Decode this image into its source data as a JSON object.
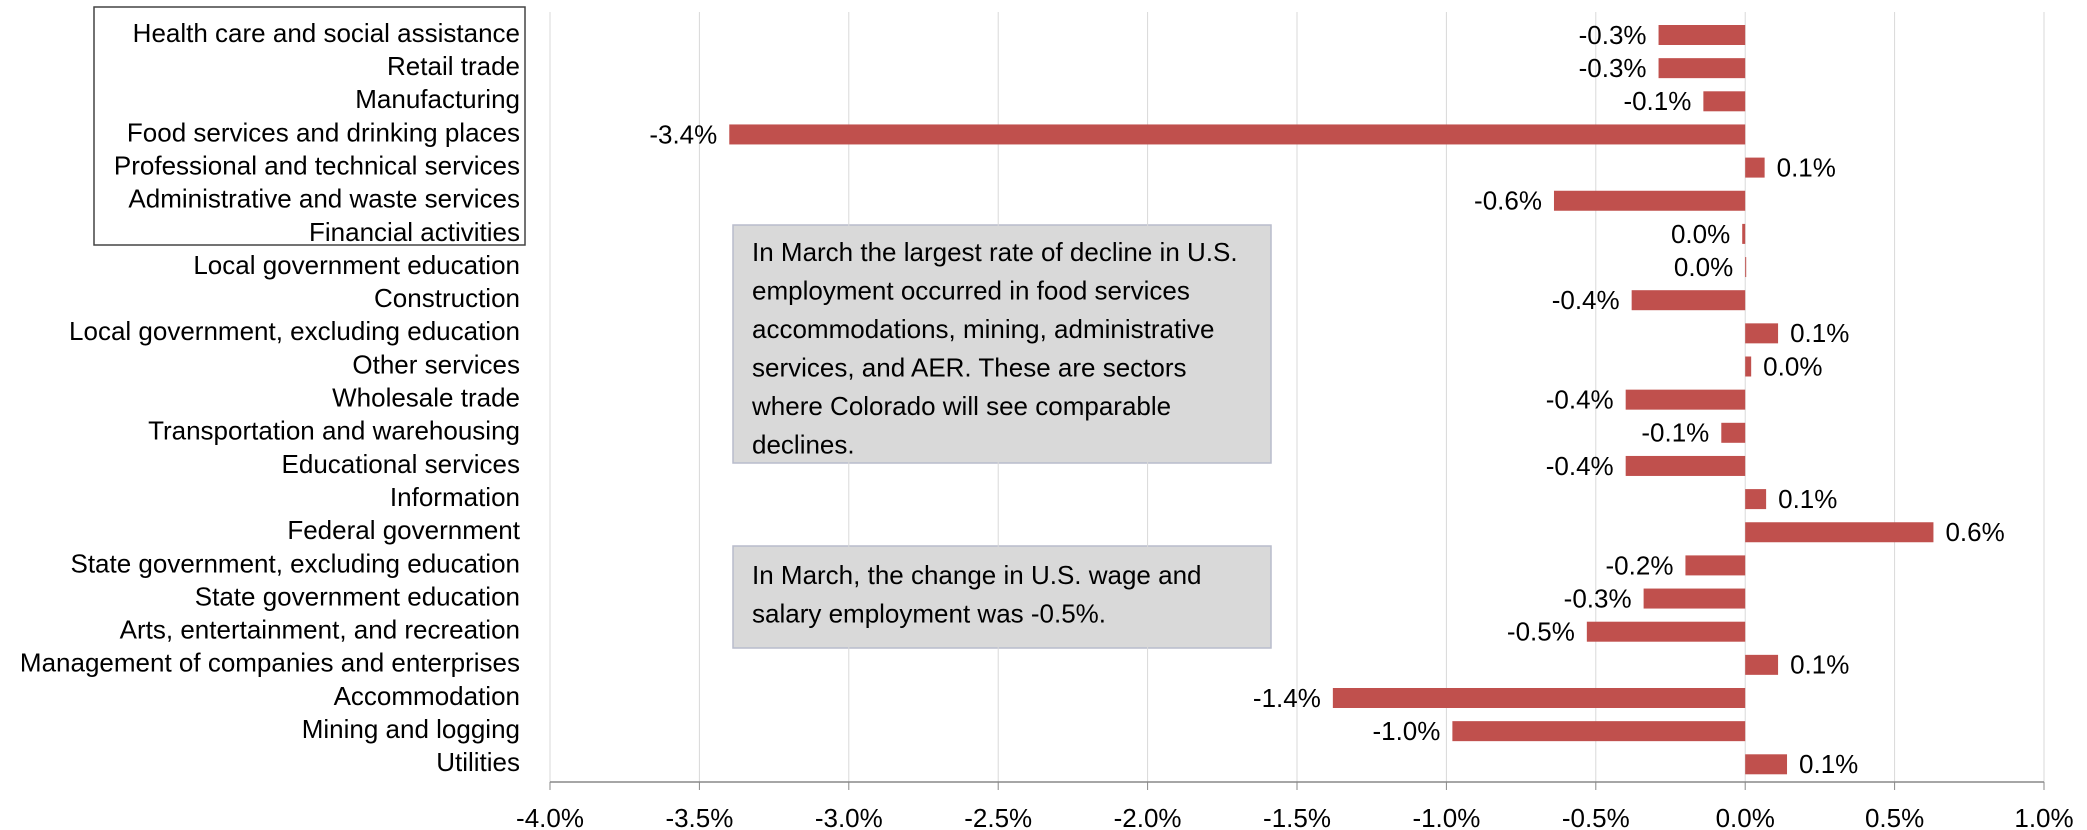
{
  "chart_data": {
    "type": "bar",
    "orientation": "horizontal",
    "color": "#c0504d",
    "categories": [
      "Health care and social assistance",
      "Retail trade",
      "Manufacturing",
      "Food services and drinking places",
      "Professional and technical services",
      "Administrative and waste services",
      "Financial activities",
      "Local government education",
      "Construction",
      "Local government, excluding education",
      "Other services",
      "Wholesale trade",
      "Transportation and warehousing",
      "Educational services",
      "Information",
      "Federal government",
      "State government, excluding education",
      "State government education",
      "Arts, entertainment, and recreation",
      "Management of companies and enterprises",
      "Accommodation",
      "Mining and logging",
      "Utilities"
    ],
    "values": [
      -0.29,
      -0.29,
      -0.14,
      -3.4,
      0.065,
      -0.64,
      -0.01,
      0,
      -0.38,
      0.11,
      0.02,
      -0.4,
      -0.08,
      -0.4,
      0.07,
      0.63,
      -0.2,
      -0.34,
      -0.53,
      0.11,
      -1.38,
      -0.98,
      0.14
    ],
    "value_labels": [
      "-0.3%",
      "-0.3%",
      "-0.1%",
      "-3.4%",
      "0.1%",
      "-0.6%",
      "0.0%",
      "0.0%",
      "-0.4%",
      "0.1%",
      "0.0%",
      "-0.4%",
      "-0.1%",
      "-0.4%",
      "0.1%",
      "0.6%",
      "-0.2%",
      "-0.3%",
      "-0.5%",
      "0.1%",
      "-1.4%",
      "-1.0%",
      "0.1%"
    ],
    "xlim": [
      -4,
      1
    ],
    "xticks": [
      {
        "value": -4,
        "label": "-4.0%"
      },
      {
        "value": -3.5,
        "label": "-3.5%"
      },
      {
        "value": -3,
        "label": "-3.0%"
      },
      {
        "value": -2.5,
        "label": "-2.5%"
      },
      {
        "value": -2,
        "label": "-2.0%"
      },
      {
        "value": -1.5,
        "label": "-1.5%"
      },
      {
        "value": -1,
        "label": "-1.0%"
      },
      {
        "value": -0.5,
        "label": "-0.5%"
      },
      {
        "value": 0,
        "label": "0.0%"
      },
      {
        "value": 0.5,
        "label": "0.5%"
      },
      {
        "value": 1,
        "label": "1.0%"
      }
    ],
    "grid": true,
    "annotations": [
      {
        "lines": [
          "In March the largest rate of decline in U.S.",
          "employment occurred in food services",
          "accommodations, mining, administrative",
          "services, and AER. These are sectors",
          "where Colorado will see comparable",
          "declines."
        ]
      },
      {
        "lines": [
          "In March, the change in U.S. wage and",
          "salary employment was -0.5%."
        ]
      }
    ]
  }
}
